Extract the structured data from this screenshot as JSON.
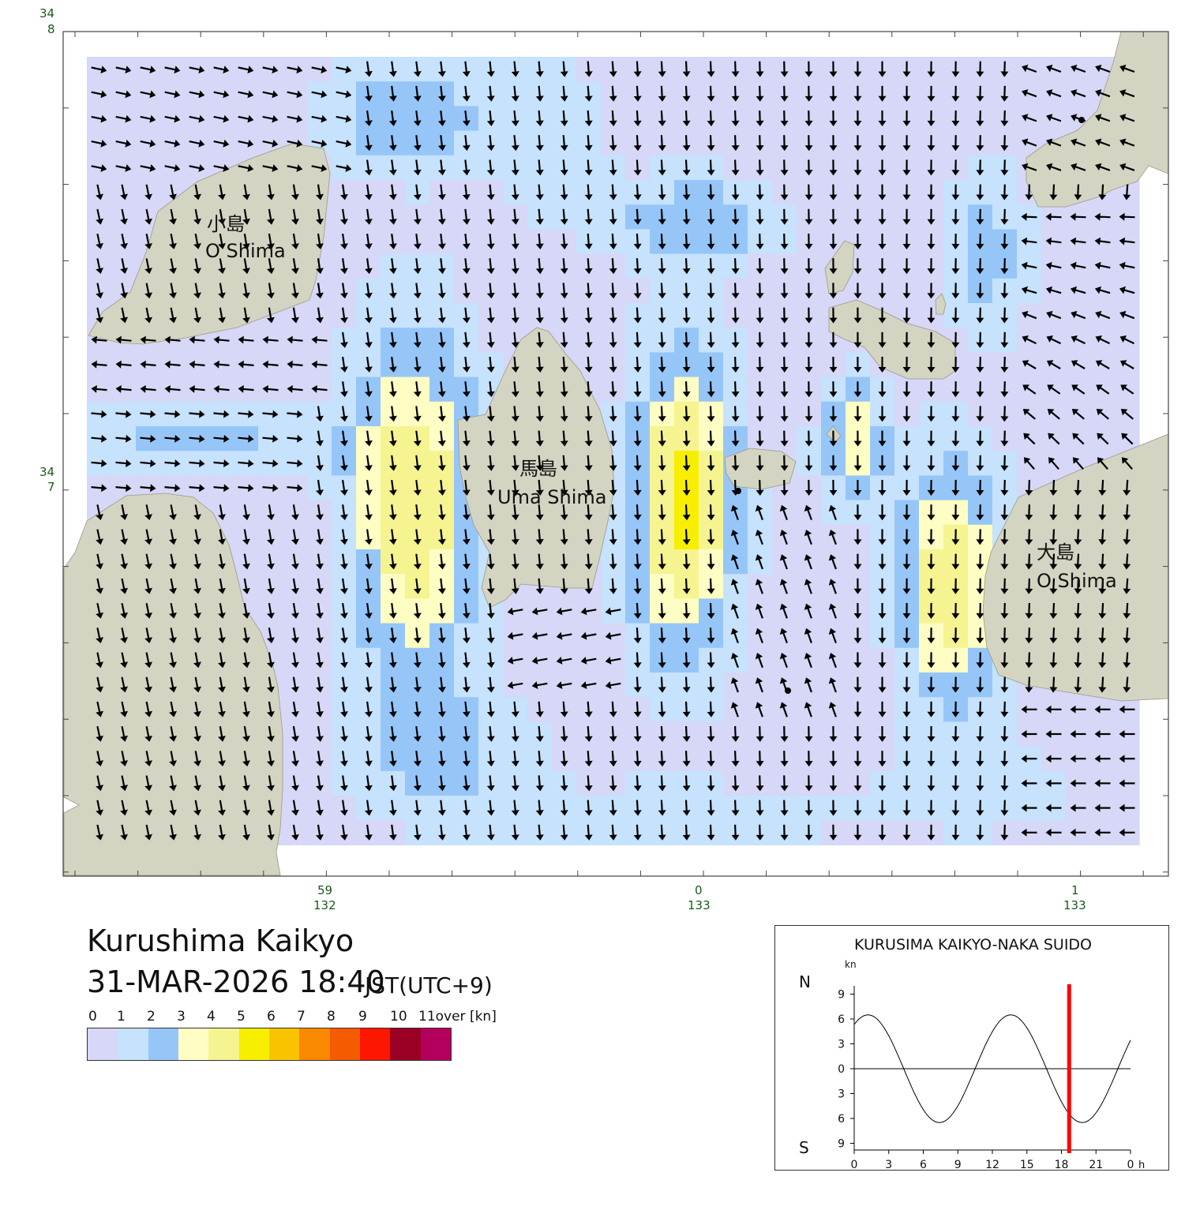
{
  "map": {
    "coord_labels": {
      "lat_top": {
        "deg": "34",
        "min": "8"
      },
      "lat_mid": {
        "deg": "34",
        "min": "7"
      },
      "lon_left": {
        "min": "59",
        "deg": "132"
      },
      "lon_mid": {
        "min": "0",
        "deg": "133"
      },
      "lon_right": {
        "min": "1",
        "deg": "133"
      }
    },
    "places": [
      {
        "jp": "小島",
        "en": "O Shima"
      },
      {
        "jp": "馬島",
        "en": "Uma Shima"
      },
      {
        "jp": "大島",
        "en": "O Shima"
      }
    ],
    "colors": {
      "land": "#d4d4c2",
      "water_bg": "#d7d7f7",
      "arrow": "#000000"
    }
  },
  "header": {
    "title": "Kurushima Kaikyo",
    "datetime": "31-MAR-2026 18:40",
    "timezone": "JST(UTC+9)"
  },
  "legend": {
    "labels": [
      "0",
      "1",
      "2",
      "3",
      "4",
      "5",
      "6",
      "7",
      "8",
      "9",
      "10",
      "11over [kn]"
    ],
    "colors": [
      "#d7d7f7",
      "#c6e2fd",
      "#96c6f8",
      "#fdfdc4",
      "#f6f491",
      "#f7ee00",
      "#f9c300",
      "#fa8800",
      "#f55b00",
      "#fd1600",
      "#9a0024",
      "#b3005d"
    ]
  },
  "inset": {
    "title": "KURUSIMA KAIKYO-NAKA SUIDO",
    "unit": "kn",
    "north_label": "N",
    "south_label": "S",
    "y_ticks": [
      "9",
      "6",
      "3",
      "0",
      "3",
      "6",
      "9"
    ],
    "x_ticks": [
      "0",
      "3",
      "6",
      "9",
      "12",
      "15",
      "18",
      "21",
      "0"
    ],
    "x_unit": "h",
    "current_hour": 18.67,
    "curve_color": "#000000",
    "marker_color": "#ff0000"
  }
}
